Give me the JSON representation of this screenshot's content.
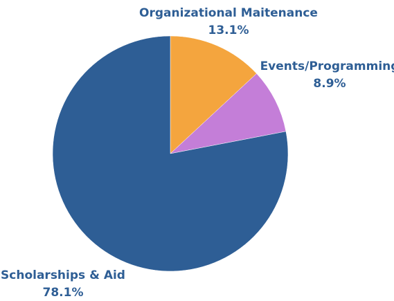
{
  "chart_data": {
    "type": "pie",
    "title": "",
    "start_angle_deg": 0,
    "direction": "clockwise",
    "legend": "none",
    "label_color": "#2E5E95",
    "slices": [
      {
        "label": "Organizational Maitenance",
        "value": 13.1,
        "value_label": "13.1%",
        "color": "#F4A53E"
      },
      {
        "label": "Events/Programming",
        "value": 8.9,
        "value_label": "8.9%",
        "color": "#C47ED8"
      },
      {
        "label": "Scholarships & Aid",
        "value": 78.1,
        "value_label": "78.1%",
        "color": "#2E5E95"
      }
    ]
  }
}
